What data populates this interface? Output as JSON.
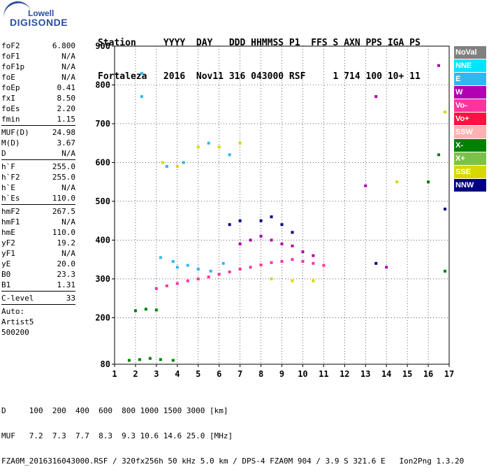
{
  "logo": {
    "line1": "Lowell",
    "line2": "DIGISONDE"
  },
  "header": {
    "labels": [
      "Station",
      "YYYY",
      "DAY",
      "DDD",
      "HHMMSS",
      "P1",
      "FFS",
      "S",
      "AXN",
      "PPS",
      "IGA",
      "PS"
    ],
    "values": [
      "Fortaleza",
      "2016",
      "Nov11",
      "316",
      "043000",
      "RSF",
      "",
      "1",
      "714",
      "100",
      "10+",
      "11"
    ]
  },
  "params": [
    [
      {
        "k": "foF2",
        "v": "6.800"
      },
      {
        "k": "foF1",
        "v": "N/A"
      },
      {
        "k": "foF1p",
        "v": "N/A"
      },
      {
        "k": "foE",
        "v": "N/A"
      },
      {
        "k": "foEp",
        "v": "0.41"
      },
      {
        "k": "fxI",
        "v": "8.50"
      },
      {
        "k": "foEs",
        "v": "2.20"
      },
      {
        "k": "fmin",
        "v": "1.15"
      }
    ],
    [
      {
        "k": "MUF(D)",
        "v": "24.98"
      },
      {
        "k": "M(D)",
        "v": "3.67"
      },
      {
        "k": "D",
        "v": "N/A"
      }
    ],
    [
      {
        "k": "h`F",
        "v": "255.0"
      },
      {
        "k": "h`F2",
        "v": "255.0"
      },
      {
        "k": "h`E",
        "v": "N/A"
      },
      {
        "k": "h`Es",
        "v": "110.0"
      }
    ],
    [
      {
        "k": "hmF2",
        "v": "267.5"
      },
      {
        "k": "hmF1",
        "v": "N/A"
      },
      {
        "k": "hmE",
        "v": "110.0"
      },
      {
        "k": "yF2",
        "v": "19.2"
      },
      {
        "k": "yF1",
        "v": "N/A"
      },
      {
        "k": "yE",
        "v": "20.0"
      },
      {
        "k": "B0",
        "v": "23.3"
      },
      {
        "k": "B1",
        "v": "1.31"
      }
    ],
    [
      {
        "k": "C-level",
        "v": "33"
      }
    ]
  ],
  "autoscaling": {
    "line1": "Auto:",
    "line2": "Artist5",
    "line3": "500200"
  },
  "legend": [
    {
      "label": "NoVal",
      "color": "#808080"
    },
    {
      "label": "NNE",
      "color": "#00e5ff"
    },
    {
      "label": "E",
      "color": "#33b5f0"
    },
    {
      "label": "W",
      "color": "#b000b0"
    },
    {
      "label": "Vo-",
      "color": "#ff33a0"
    },
    {
      "label": "Vo+",
      "color": "#ff1040"
    },
    {
      "label": "SSW",
      "color": "#ffb0b0"
    },
    {
      "label": "X-",
      "color": "#008000"
    },
    {
      "label": "X+",
      "color": "#7cc24a"
    },
    {
      "label": "SSE",
      "color": "#d8d800"
    },
    {
      "label": "NNW",
      "color": "#000080"
    }
  ],
  "footer": {
    "line1": "D     100  200  400  600  800 1000 1500 3000 [km]",
    "line2": "MUF   7.2  7.3  7.7  8.3  9.3 10.6 14.6 25.0 [MHz]",
    "line3": "FZA0M_2016316043000.RSF / 320fx256h 50 kHz 5.0 km / DPS-4 FZA0M 904 / 3.9 S 321.6 E   Ion2Png 1.3.20"
  },
  "chart_data": {
    "type": "scatter",
    "title": "",
    "xlabel": "",
    "ylabel": "",
    "xlim": [
      1,
      17
    ],
    "ylim": [
      80,
      900
    ],
    "xticks": [
      1,
      2,
      3,
      4,
      5,
      6,
      7,
      8,
      9,
      10,
      11,
      12,
      13,
      14,
      15,
      16,
      17
    ],
    "yticks": [
      80,
      200,
      300,
      400,
      500,
      600,
      700,
      800,
      900
    ],
    "grid": true,
    "legend_position": "right",
    "series": [
      {
        "name": "E",
        "color": "#33b5f0",
        "points": [
          [
            3.2,
            355
          ],
          [
            3.8,
            345
          ],
          [
            4.5,
            335
          ],
          [
            5.0,
            325
          ],
          [
            5.6,
            320
          ],
          [
            6.2,
            340
          ],
          [
            4.0,
            330
          ],
          [
            2.3,
            830
          ],
          [
            2.3,
            770
          ],
          [
            3.5,
            590
          ],
          [
            4.3,
            600
          ],
          [
            5.5,
            650
          ],
          [
            6.5,
            620
          ]
        ]
      },
      {
        "name": "Vo-",
        "color": "#ff33a0",
        "points": [
          [
            3.0,
            275
          ],
          [
            3.5,
            282
          ],
          [
            4.0,
            288
          ],
          [
            4.5,
            295
          ],
          [
            5.0,
            300
          ],
          [
            5.5,
            305
          ],
          [
            6.0,
            312
          ],
          [
            6.5,
            318
          ],
          [
            7.0,
            325
          ],
          [
            7.5,
            330
          ],
          [
            8.0,
            336
          ],
          [
            8.5,
            342
          ],
          [
            9.0,
            345
          ],
          [
            9.5,
            350
          ],
          [
            10.0,
            345
          ],
          [
            10.5,
            340
          ],
          [
            11.0,
            335
          ]
        ]
      },
      {
        "name": "W",
        "color": "#b000b0",
        "points": [
          [
            7.0,
            390
          ],
          [
            7.5,
            400
          ],
          [
            8.0,
            410
          ],
          [
            8.5,
            400
          ],
          [
            9.0,
            390
          ],
          [
            9.5,
            385
          ],
          [
            10.0,
            370
          ],
          [
            10.5,
            360
          ],
          [
            13.0,
            540
          ],
          [
            13.5,
            770
          ],
          [
            14.0,
            330
          ],
          [
            16.5,
            850
          ]
        ]
      },
      {
        "name": "X-",
        "color": "#008000",
        "points": [
          [
            1.7,
            90
          ],
          [
            2.2,
            92
          ],
          [
            2.7,
            95
          ],
          [
            3.2,
            92
          ],
          [
            3.8,
            90
          ],
          [
            2.0,
            218
          ],
          [
            2.5,
            222
          ],
          [
            3.0,
            220
          ],
          [
            16.0,
            550
          ],
          [
            16.5,
            620
          ],
          [
            16.8,
            320
          ]
        ]
      },
      {
        "name": "SSE",
        "color": "#d8d800",
        "points": [
          [
            3.3,
            600
          ],
          [
            4.0,
            590
          ],
          [
            5.0,
            640
          ],
          [
            6.0,
            640
          ],
          [
            7.0,
            650
          ],
          [
            8.5,
            300
          ],
          [
            9.5,
            295
          ],
          [
            10.5,
            295
          ],
          [
            14.5,
            550
          ],
          [
            16.8,
            730
          ]
        ]
      },
      {
        "name": "NNW",
        "color": "#000080",
        "points": [
          [
            6.5,
            440
          ],
          [
            7.0,
            450
          ],
          [
            8.0,
            450
          ],
          [
            8.5,
            460
          ],
          [
            9.0,
            440
          ],
          [
            9.5,
            420
          ],
          [
            13.5,
            340
          ],
          [
            16.8,
            480
          ]
        ]
      }
    ]
  }
}
